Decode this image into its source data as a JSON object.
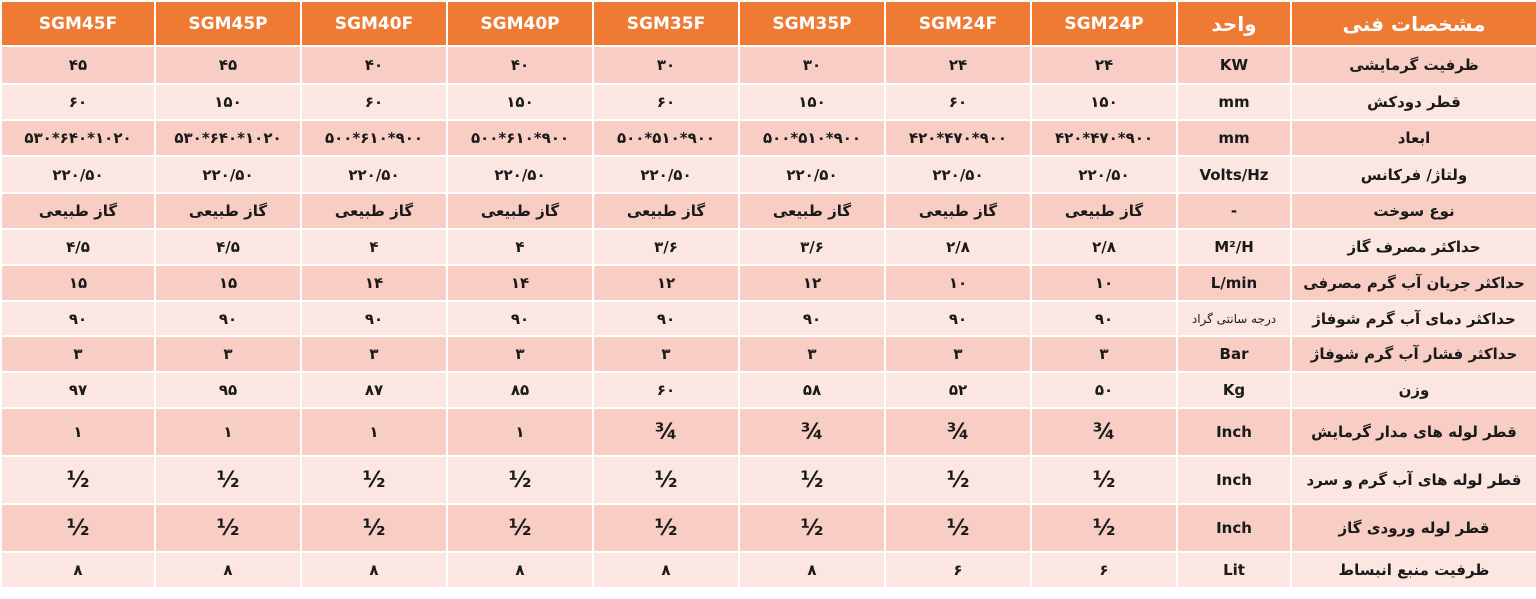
{
  "header": {
    "spec": "مشخصات فنی",
    "unit": "واحد",
    "models": [
      "SGM24P",
      "SGM24F",
      "SGM35P",
      "SGM35F",
      "SGM40P",
      "SGM40F",
      "SGM45P",
      "SGM45F"
    ]
  },
  "rows": [
    {
      "spec": "ظرفیت گرمایشی",
      "unit": "KW",
      "values": [
        "۲۴",
        "۲۴",
        "۳۰",
        "۳۰",
        "۴۰",
        "۴۰",
        "۴۵",
        "۴۵"
      ]
    },
    {
      "spec": "قطر دودکش",
      "unit": "mm",
      "values": [
        "۱۵۰",
        "۶۰",
        "۱۵۰",
        "۶۰",
        "۱۵۰",
        "۶۰",
        "۱۵۰",
        "۶۰"
      ]
    },
    {
      "spec": "ابعاد",
      "unit": "mm",
      "values": [
        "۹۰۰*۴۷۰*۴۲۰",
        "۹۰۰*۴۷۰*۴۲۰",
        "۹۰۰*۵۱۰*۵۰۰",
        "۹۰۰*۵۱۰*۵۰۰",
        "۹۰۰*۶۱۰*۵۰۰",
        "۹۰۰*۶۱۰*۵۰۰",
        "۱۰۲۰*۶۴۰*۵۳۰",
        "۱۰۲۰*۶۴۰*۵۳۰"
      ]
    },
    {
      "spec": "ولتاژ/ فرکانس",
      "unit": "Volts/Hz",
      "values": [
        "۲۲۰/۵۰",
        "۲۲۰/۵۰",
        "۲۲۰/۵۰",
        "۲۲۰/۵۰",
        "۲۲۰/۵۰",
        "۲۲۰/۵۰",
        "۲۲۰/۵۰",
        "۲۲۰/۵۰"
      ]
    },
    {
      "spec": "نوع سوخت",
      "unit": "-",
      "values": [
        "گاز طبیعی",
        "گاز طبیعی",
        "گاز طبیعی",
        "گاز طبیعی",
        "گاز طبیعی",
        "گاز طبیعی",
        "گاز طبیعی",
        "گاز طبیعی"
      ]
    },
    {
      "spec": "حداکثر مصرف گاز",
      "unit": "M²/H",
      "values": [
        "۲/۸",
        "۲/۸",
        "۳/۶",
        "۳/۶",
        "۴",
        "۴",
        "۴/۵",
        "۴/۵"
      ]
    },
    {
      "spec": "حداکثر جریان آب گرم مصرفی",
      "unit": "L/min",
      "values": [
        "۱۰",
        "۱۰",
        "۱۲",
        "۱۲",
        "۱۴",
        "۱۴",
        "۱۵",
        "۱۵"
      ]
    },
    {
      "spec": "حداکثر دمای آب گرم شوفاژ",
      "unit": "درجه سانتی گراد",
      "values": [
        "۹۰",
        "۹۰",
        "۹۰",
        "۹۰",
        "۹۰",
        "۹۰",
        "۹۰",
        "۹۰"
      ]
    },
    {
      "spec": "حداکثر فشار آب گرم شوفاژ",
      "unit": "Bar",
      "values": [
        "۳",
        "۳",
        "۳",
        "۳",
        "۳",
        "۳",
        "۳",
        "۳"
      ]
    },
    {
      "spec": "وزن",
      "unit": "Kg",
      "values": [
        "۵۰",
        "۵۲",
        "۵۸",
        "۶۰",
        "۸۵",
        "۸۷",
        "۹۵",
        "۹۷"
      ]
    },
    {
      "spec": "قطر لوله های مدار گرمایش",
      "unit": "Inch",
      "values": [
        "¾",
        "¾",
        "¾",
        "¾",
        "۱",
        "۱",
        "۱",
        "۱"
      ]
    },
    {
      "spec": "قطر لوله های آب گرم و سرد",
      "unit": "Inch",
      "values": [
        "½",
        "½",
        "½",
        "½",
        "½",
        "½",
        "½",
        "½"
      ]
    },
    {
      "spec": "قطر لوله ورودی گاز",
      "unit": "Inch",
      "values": [
        "½",
        "½",
        "½",
        "½",
        "½",
        "½",
        "½",
        "½"
      ]
    },
    {
      "spec": "ظرفیت منبع انبساط",
      "unit": "Lit",
      "values": [
        "۶",
        "۶",
        "۸",
        "۸",
        "۸",
        "۸",
        "۸",
        "۸"
      ]
    }
  ],
  "colors": {
    "header_bg": "#ee7a33",
    "row_odd": "#f7cdc4",
    "row_even": "#fbe6e1"
  }
}
